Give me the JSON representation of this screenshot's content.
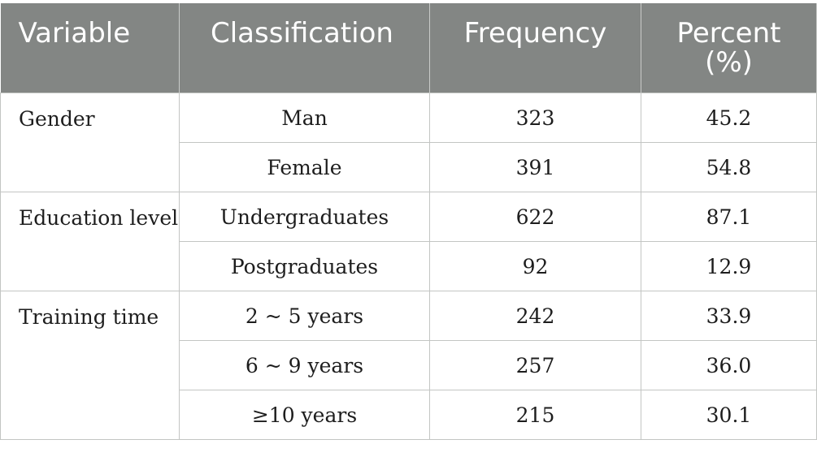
{
  "table": {
    "headers": {
      "variable": "Variable",
      "classification": "Classification",
      "frequency": "Frequency",
      "percent": "Percent (%)"
    },
    "groups": [
      {
        "variable": "Gender",
        "rows": [
          {
            "classification": "Man",
            "frequency": "323",
            "percent": "45.2"
          },
          {
            "classification": "Female",
            "frequency": "391",
            "percent": "54.8"
          }
        ]
      },
      {
        "variable": "Education level",
        "rows": [
          {
            "classification": "Undergraduates",
            "frequency": "622",
            "percent": "87.1"
          },
          {
            "classification": "Postgraduates",
            "frequency": "92",
            "percent": "12.9"
          }
        ]
      },
      {
        "variable": "Training time",
        "rows": [
          {
            "classification": "2 ~ 5 years",
            "frequency": "242",
            "percent": "33.9"
          },
          {
            "classification": "6 ~ 9 years",
            "frequency": "257",
            "percent": "36.0"
          },
          {
            "classification": "≥10 years",
            "frequency": "215",
            "percent": "30.1"
          }
        ]
      }
    ]
  },
  "colors": {
    "header_background": "#838684",
    "header_text": "#ffffff",
    "grid_lines": "#c3c5c3",
    "body_text": "#1d1d1d"
  }
}
